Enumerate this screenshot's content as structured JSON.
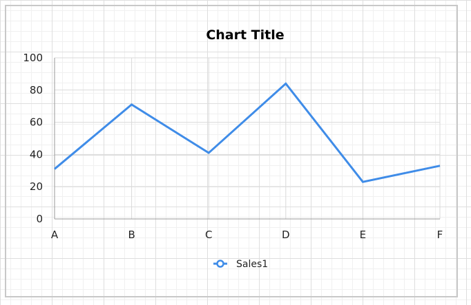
{
  "chart_data": {
    "type": "line",
    "title": "Chart Title",
    "categories": [
      "A",
      "B",
      "C",
      "D",
      "E",
      "F"
    ],
    "series": [
      {
        "name": "Sales1",
        "values": [
          31,
          71,
          41,
          84,
          23,
          33
        ],
        "color": "#3f8ce8"
      }
    ],
    "ylim": [
      0,
      100
    ],
    "yticks": [
      0,
      20,
      40,
      60,
      80,
      100
    ],
    "grid": true,
    "legend": "bottom"
  }
}
